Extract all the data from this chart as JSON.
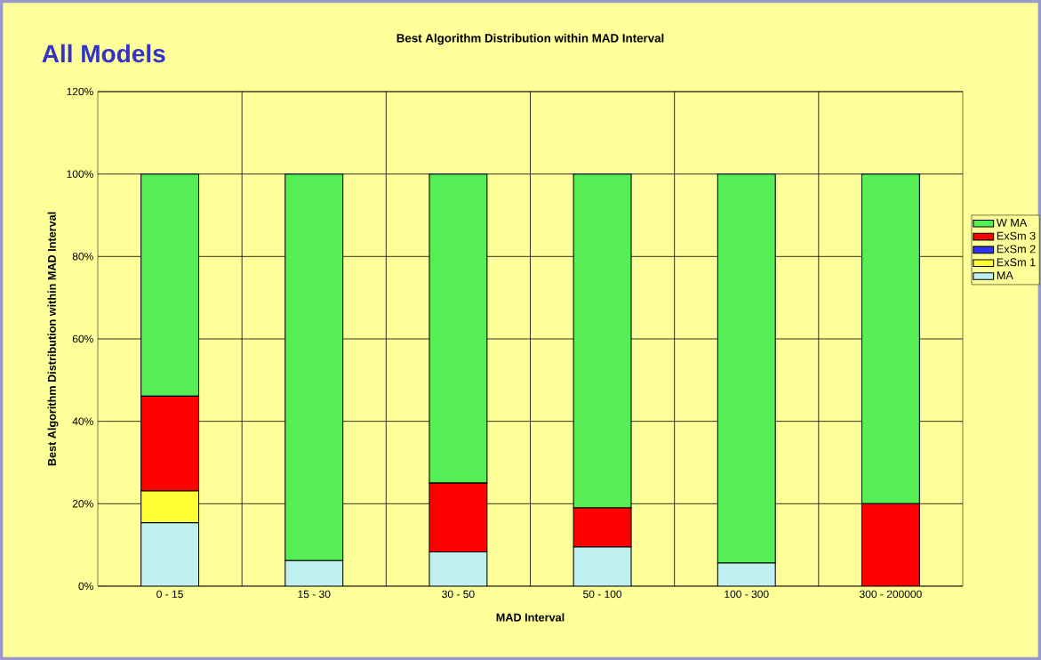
{
  "chart_data": {
    "type": "bar",
    "stacked": true,
    "title": "Best Algorithm Distribution within MAD Interval",
    "subtitle": "All Models",
    "xlabel": "MAD Interval",
    "ylabel": "Best Algorithm Distribution within MAD Interval",
    "categories": [
      "0 - 15",
      "15 - 30",
      "30 - 50",
      "50 - 100",
      "100 - 300",
      "300 - 200000"
    ],
    "series": [
      {
        "name": "MA",
        "color": "#bfeff0",
        "values": [
          15.4,
          6.2,
          8.3,
          9.5,
          5.6,
          0
        ]
      },
      {
        "name": "ExSm 1",
        "color": "#ffff33",
        "values": [
          7.7,
          0,
          0,
          0,
          0,
          0
        ]
      },
      {
        "name": "ExSm 2",
        "color": "#3333ff",
        "values": [
          0,
          0,
          0,
          0,
          0,
          0
        ]
      },
      {
        "name": "ExSm 3",
        "color": "#ff0000",
        "values": [
          23.0,
          0,
          16.7,
          9.5,
          0,
          20
        ]
      },
      {
        "name": "W MA",
        "color": "#55ee55",
        "values": [
          53.9,
          93.8,
          75.0,
          81.0,
          94.4,
          80
        ]
      }
    ],
    "ylim": [
      0,
      120
    ],
    "yticks": [
      {
        "value": 0,
        "label": "0%"
      },
      {
        "value": 20,
        "label": "20%"
      },
      {
        "value": 40,
        "label": "40%"
      },
      {
        "value": 60,
        "label": "60%"
      },
      {
        "value": 80,
        "label": "80%"
      },
      {
        "value": 100,
        "label": "100%"
      },
      {
        "value": 120,
        "label": "120%"
      }
    ],
    "grid": true,
    "legend": "right"
  }
}
